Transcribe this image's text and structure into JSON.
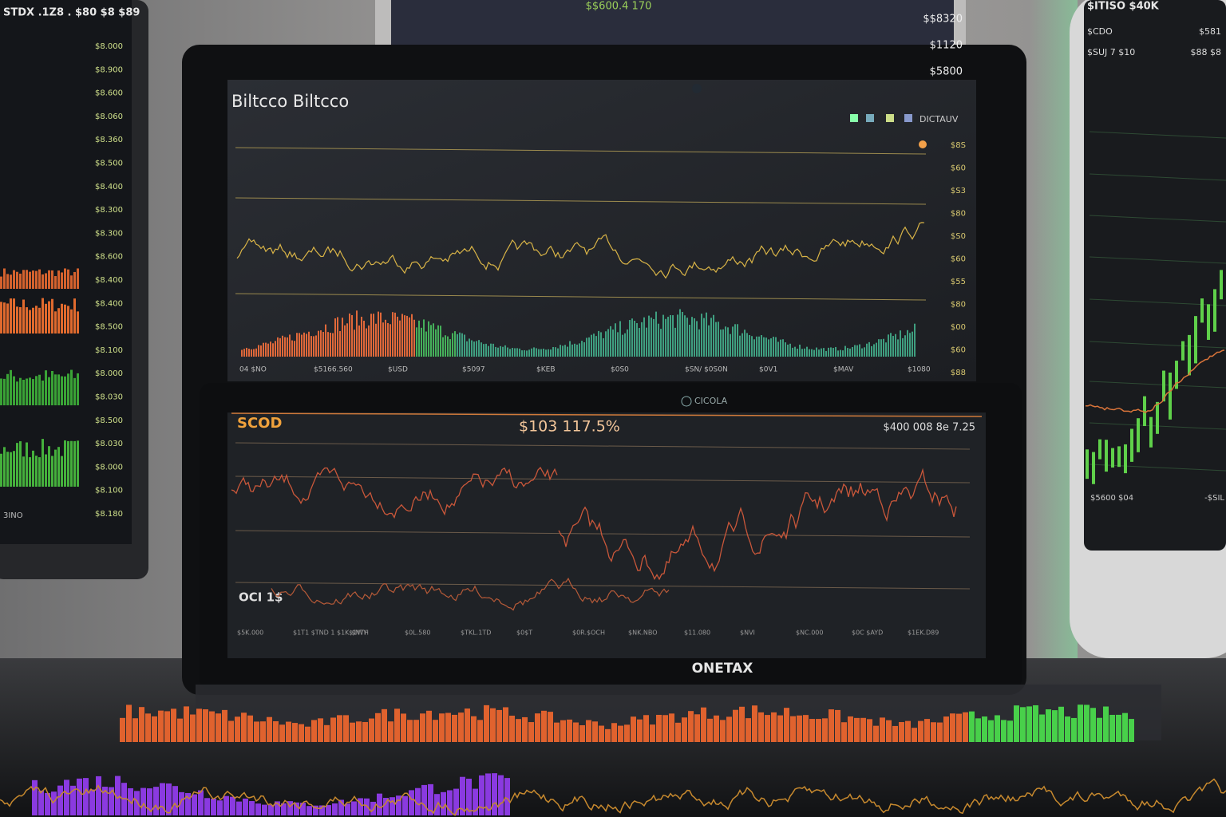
{
  "top_monitor": {
    "caption": "$$600.4 170",
    "prices": [
      "$$8320",
      "$1120",
      "$5800"
    ]
  },
  "left_monitor": {
    "header": "STDX .1Z8 . $80 $8 $89",
    "prices": [
      "$8.000",
      "$8.900",
      "$8.600",
      "$8.060",
      "$8.360",
      "$8.500",
      "$8.400",
      "$8.300",
      "$8.300",
      "$8.600",
      "$8.400",
      "$8.400",
      "$8.500",
      "$8.100",
      "$8.000",
      "$8.030",
      "$8.500",
      "$8.030",
      "$8.000",
      "$8.100",
      "$8.180"
    ],
    "footer": "3INO"
  },
  "main_screen": {
    "title": "Biltcco Biltcco",
    "legend": "DICTAUV",
    "price_axis": [
      "$8S",
      "$60",
      "$S3",
      "$80",
      "$S0",
      "$60",
      "$55",
      "$80",
      "$00",
      "$60",
      "$88"
    ],
    "time_axis": [
      "04 $NO",
      "$5166.560",
      "$USD",
      "$5097",
      "$KEB",
      "$0S0",
      "$SN/ $0S0N",
      "$0V1",
      "$MAV",
      "$1080"
    ]
  },
  "lower_screen": {
    "logo": "CICOLA",
    "symbol": "SCOD",
    "price": "$103 117.5%",
    "change": "$400 008 8e 7.25",
    "secondary_label": "OCI 1$",
    "time_axis": [
      "$5K.000",
      "$1T1 $TND 1 $1K.$NTH",
      "$1WY",
      "$0L.580",
      "$TKL.1TD",
      "$0$T",
      "$0R.$OCH",
      "$NK.NBO",
      "$11.080",
      "$NVI",
      "$NC.000",
      "$0C $AYD",
      "$1EK.D89"
    ],
    "brand": "ONETAX"
  },
  "right_monitor": {
    "header": "$ITISO $40K",
    "labels": [
      "$CDO",
      "$581",
      "$SUJ 7 $10",
      "$88 $8"
    ],
    "footer": [
      "$5600 $04",
      "-$SIL"
    ]
  }
}
